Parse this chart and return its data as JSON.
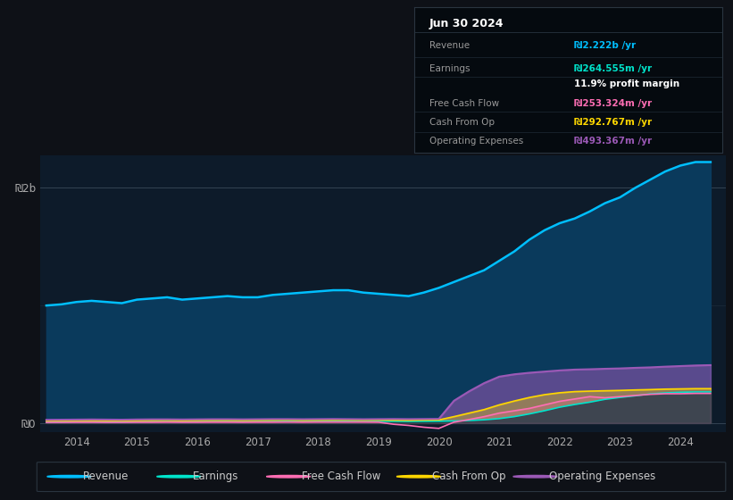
{
  "background_color": "#0e1117",
  "plot_bg_color": "#0d1b2a",
  "title": "Jun 30 2024",
  "years": [
    2013.5,
    2013.75,
    2014.0,
    2014.25,
    2014.5,
    2014.75,
    2015.0,
    2015.25,
    2015.5,
    2015.75,
    2016.0,
    2016.25,
    2016.5,
    2016.75,
    2017.0,
    2017.25,
    2017.5,
    2017.75,
    2018.0,
    2018.25,
    2018.5,
    2018.75,
    2019.0,
    2019.25,
    2019.5,
    2019.75,
    2020.0,
    2020.25,
    2020.5,
    2020.75,
    2021.0,
    2021.25,
    2021.5,
    2021.75,
    2022.0,
    2022.25,
    2022.5,
    2022.75,
    2023.0,
    2023.25,
    2023.5,
    2023.75,
    2024.0,
    2024.25,
    2024.5
  ],
  "revenue": [
    1.0,
    1.01,
    1.03,
    1.04,
    1.03,
    1.02,
    1.05,
    1.06,
    1.07,
    1.05,
    1.06,
    1.07,
    1.08,
    1.07,
    1.07,
    1.09,
    1.1,
    1.11,
    1.12,
    1.13,
    1.13,
    1.11,
    1.1,
    1.09,
    1.08,
    1.11,
    1.15,
    1.2,
    1.25,
    1.3,
    1.38,
    1.46,
    1.56,
    1.64,
    1.7,
    1.74,
    1.8,
    1.87,
    1.92,
    2.0,
    2.07,
    2.14,
    2.19,
    2.22,
    2.22
  ],
  "earnings": [
    0.01,
    0.011,
    0.012,
    0.012,
    0.011,
    0.011,
    0.012,
    0.013,
    0.013,
    0.012,
    0.013,
    0.014,
    0.014,
    0.013,
    0.014,
    0.014,
    0.015,
    0.014,
    0.015,
    0.015,
    0.015,
    0.014,
    0.015,
    0.015,
    0.014,
    0.015,
    0.016,
    0.018,
    0.022,
    0.028,
    0.038,
    0.055,
    0.078,
    0.105,
    0.135,
    0.158,
    0.178,
    0.202,
    0.218,
    0.232,
    0.248,
    0.257,
    0.262,
    0.265,
    0.265
  ],
  "free_cash_flow": [
    0.006,
    0.006,
    0.007,
    0.007,
    0.006,
    0.006,
    0.007,
    0.007,
    0.008,
    0.007,
    0.007,
    0.008,
    0.008,
    0.007,
    0.008,
    0.008,
    0.009,
    0.008,
    0.009,
    0.009,
    0.009,
    0.009,
    0.008,
    -0.01,
    -0.02,
    -0.035,
    -0.045,
    0.008,
    0.03,
    0.055,
    0.085,
    0.105,
    0.125,
    0.155,
    0.185,
    0.205,
    0.225,
    0.215,
    0.225,
    0.235,
    0.245,
    0.25,
    0.25,
    0.253,
    0.253
  ],
  "cash_from_op": [
    0.02,
    0.021,
    0.022,
    0.022,
    0.021,
    0.021,
    0.022,
    0.023,
    0.024,
    0.022,
    0.023,
    0.024,
    0.024,
    0.023,
    0.024,
    0.025,
    0.026,
    0.024,
    0.025,
    0.026,
    0.026,
    0.025,
    0.026,
    0.025,
    0.024,
    0.026,
    0.027,
    0.055,
    0.085,
    0.115,
    0.155,
    0.188,
    0.218,
    0.242,
    0.258,
    0.268,
    0.272,
    0.275,
    0.278,
    0.282,
    0.285,
    0.289,
    0.291,
    0.293,
    0.293
  ],
  "operating_expenses": [
    0.028,
    0.029,
    0.03,
    0.031,
    0.03,
    0.029,
    0.031,
    0.032,
    0.032,
    0.031,
    0.032,
    0.033,
    0.033,
    0.032,
    0.033,
    0.034,
    0.034,
    0.033,
    0.034,
    0.035,
    0.034,
    0.033,
    0.034,
    0.035,
    0.034,
    0.035,
    0.036,
    0.19,
    0.27,
    0.34,
    0.395,
    0.415,
    0.428,
    0.438,
    0.448,
    0.455,
    0.458,
    0.462,
    0.465,
    0.47,
    0.474,
    0.48,
    0.485,
    0.49,
    0.493
  ],
  "revenue_color": "#00bfff",
  "earnings_color": "#00e5cc",
  "free_cash_flow_color": "#ff6eb4",
  "cash_from_op_color": "#ffd700",
  "operating_expenses_color": "#9b59b6",
  "revenue_fill": "#0a3a5c",
  "earnings_fill": "#003535",
  "xlim": [
    2013.4,
    2024.75
  ],
  "ylim": [
    -0.08,
    2.28
  ],
  "xtick_years": [
    2014,
    2015,
    2016,
    2017,
    2018,
    2019,
    2020,
    2021,
    2022,
    2023,
    2024
  ],
  "ytick_labels": [
    "₪0",
    "₪2b"
  ],
  "ytick_vals": [
    0,
    2.0
  ],
  "legend_labels": [
    "Revenue",
    "Earnings",
    "Free Cash Flow",
    "Cash From Op",
    "Operating Expenses"
  ],
  "legend_colors": [
    "#00bfff",
    "#00e5cc",
    "#ff6eb4",
    "#ffd700",
    "#9b59b6"
  ],
  "tooltip_rows": [
    {
      "label": "Revenue",
      "value": "₪2.222b /yr",
      "color": "#00bfff"
    },
    {
      "label": "Earnings",
      "value": "₪264.555m /yr",
      "color": "#00e5cc"
    },
    {
      "label": "",
      "value": "11.9% profit margin",
      "color": "#ffffff"
    },
    {
      "label": "Free Cash Flow",
      "value": "₪253.324m /yr",
      "color": "#ff6eb4"
    },
    {
      "label": "Cash From Op",
      "value": "₪292.767m /yr",
      "color": "#ffd700"
    },
    {
      "label": "Operating Expenses",
      "value": "₪493.367m /yr",
      "color": "#9b59b6"
    }
  ]
}
